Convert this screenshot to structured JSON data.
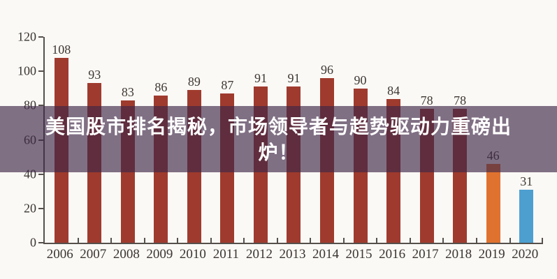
{
  "page": {
    "background": "#fbf9f6"
  },
  "overlay": {
    "line1": "美国股市排名揭秘，市场领导者与趋势驱动力重磅出",
    "line2": "炉！",
    "background_rgba": "rgba(62,38,70,0.65)",
    "text_color": "#ffffff"
  },
  "chart_data": {
    "type": "bar",
    "title": "",
    "xlabel": "",
    "ylabel": "",
    "categories": [
      "2006",
      "2007",
      "2008",
      "2009",
      "2010",
      "2011",
      "2012",
      "2013",
      "2014",
      "2015",
      "2016",
      "2017",
      "2018",
      "2019",
      "2020"
    ],
    "values": [
      108,
      93,
      83,
      86,
      89,
      87,
      91,
      91,
      96,
      90,
      84,
      78,
      78,
      46,
      31
    ],
    "colors": [
      "#9f3b2e",
      "#9f3b2e",
      "#9f3b2e",
      "#9f3b2e",
      "#9f3b2e",
      "#9f3b2e",
      "#9f3b2e",
      "#9f3b2e",
      "#9f3b2e",
      "#9f3b2e",
      "#9f3b2e",
      "#9f3b2e",
      "#9f3b2e",
      "#e0722f",
      "#4d9fd0"
    ],
    "value_labels_shown": true,
    "ylim": [
      0,
      120
    ],
    "yticks": [
      0,
      20,
      40,
      60,
      80,
      100,
      120
    ],
    "grid": false,
    "legend_position": "none",
    "axis_color": "#55504b",
    "label_color": "#3a3530"
  }
}
